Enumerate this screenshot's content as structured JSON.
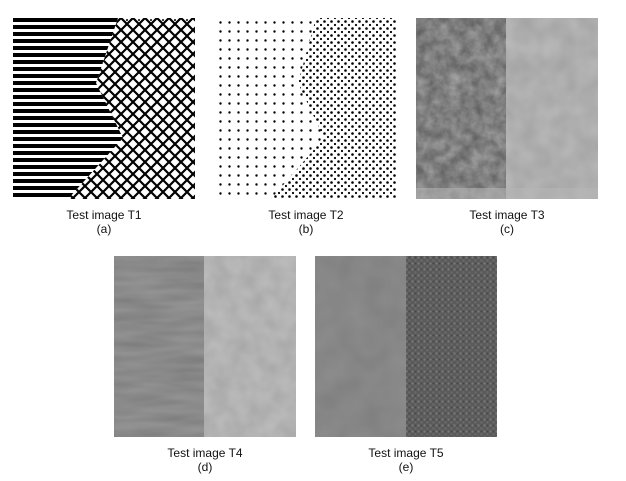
{
  "panels": [
    {
      "id": "a",
      "title": "Test image T1",
      "label": "(a)"
    },
    {
      "id": "b",
      "title": "Test image T2",
      "label": "(b)"
    },
    {
      "id": "c",
      "title": "Test image T3",
      "label": "(c)"
    },
    {
      "id": "d",
      "title": "Test image T4",
      "label": "(d)"
    },
    {
      "id": "e",
      "title": "Test image T5",
      "label": "(e)"
    }
  ],
  "colors": {
    "background": "#ffffff",
    "ink": "#000000",
    "t3_left": "#a9a9a9",
    "t3_right": "#bdbdbd",
    "t4_left": "#999999",
    "t4_right": "#c0c0c0",
    "t5_left": "#8f8f8f",
    "t5_right": "#5a5a5a"
  }
}
